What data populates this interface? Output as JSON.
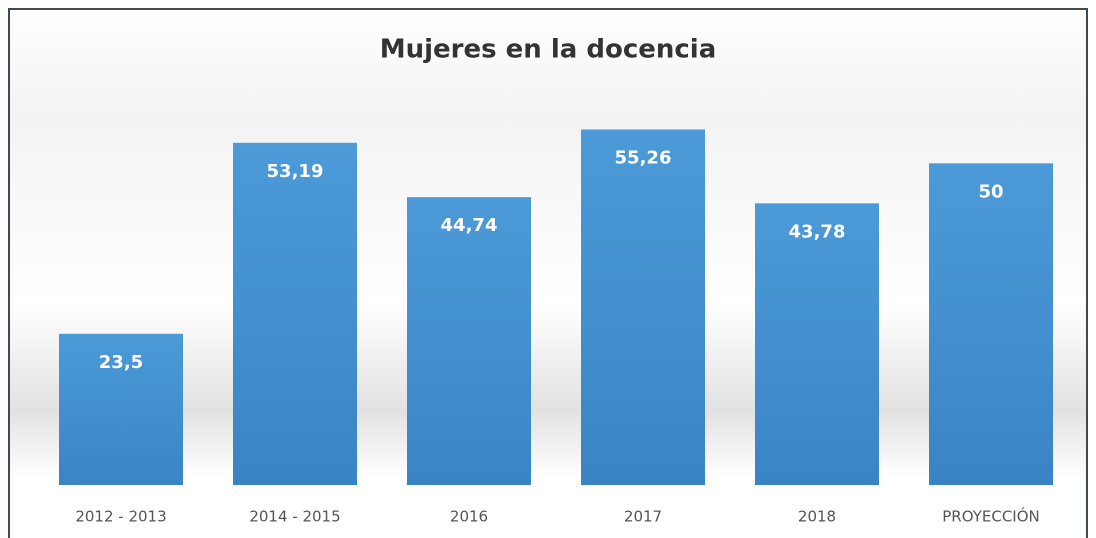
{
  "chart_data": {
    "type": "bar",
    "title": "Mujeres en la docencia",
    "categories": [
      "2012 - 2013",
      "2014 - 2015",
      "2016",
      "2017",
      "2018",
      "PROYECCIÓN"
    ],
    "values": [
      23.5,
      53.19,
      44.74,
      55.26,
      43.78,
      50
    ],
    "value_labels": [
      "23,5",
      "53,19",
      "44,74",
      "55,26",
      "43,78",
      "50"
    ],
    "color": "#4795d4",
    "ylim": [
      0,
      60
    ]
  }
}
